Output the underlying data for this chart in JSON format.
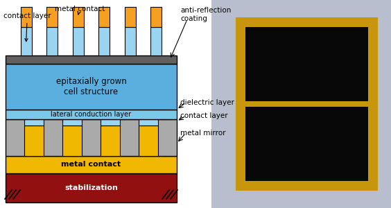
{
  "bg_color": "#ffffff",
  "colors": {
    "dark_gray": "#606060",
    "blue_main": "#5aafde",
    "blue_lateral": "#7bc8e8",
    "light_blue_contact": "#99d4f0",
    "gray_dielectric": "#aaaaaa",
    "yellow_metal": "#f0b800",
    "dark_red_stab": "#921010",
    "orange_contact_top": "#f5a020",
    "photo_bg": "#b8bece",
    "black_cell": "#080808",
    "gold_contact": "#c8960a"
  },
  "labels": {
    "contact_layer": "contact layer",
    "metal_contact": "metal contact",
    "anti_reflection": "anti-reflection\ncoating",
    "epitaxially": "epitaxially grown\ncell structure",
    "lateral": "lateral conduction layer",
    "dielectric": "dielectric layer",
    "contact_layer2": "contact layer",
    "metal_mirror": "metal mirror",
    "metal_contact_bottom": "metal contact",
    "stabilization": "stabilization"
  },
  "n_fingers": 6,
  "n_pillars": 4
}
